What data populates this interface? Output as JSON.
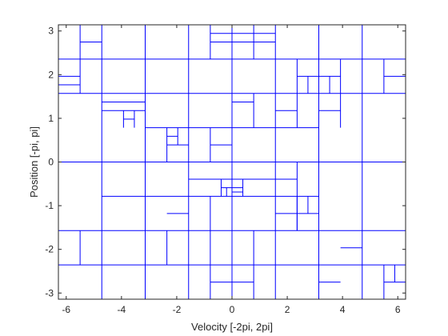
{
  "chart_data": {
    "type": "rectangle_partition",
    "title": "",
    "xlabel": "Velocity [-2pi, 2pi]",
    "ylabel": "Position [-pi, pi]",
    "xlim": [
      -6.2832,
      6.2832
    ],
    "ylim": [
      -3.1416,
      3.1416
    ],
    "xticks": [
      -6,
      -4,
      -2,
      0,
      2,
      4,
      6
    ],
    "yticks": [
      -3,
      -2,
      -1,
      0,
      1,
      2,
      3
    ],
    "xtick_labels": [
      "-6",
      "-4",
      "-2",
      "0",
      "2",
      "4",
      "6"
    ],
    "ytick_labels": [
      "-3",
      "-2",
      "-1",
      "0",
      "1",
      "2",
      "3"
    ],
    "line_color": "#0000ff",
    "axis_color": "#262626",
    "box": true,
    "grid": false,
    "vertical_segments": [
      {
        "x": -4.7124,
        "y1": -3.1416,
        "y2": 3.1416
      },
      {
        "x": -3.1416,
        "y1": -3.1416,
        "y2": 3.1416
      },
      {
        "x": -1.5708,
        "y1": -3.1416,
        "y2": 3.1416
      },
      {
        "x": 0.0,
        "y1": -3.1416,
        "y2": 3.1416
      },
      {
        "x": 1.5708,
        "y1": -3.1416,
        "y2": 3.1416
      },
      {
        "x": 3.1416,
        "y1": -3.1416,
        "y2": 3.1416
      },
      {
        "x": 4.7124,
        "y1": -3.1416,
        "y2": 3.1416
      },
      {
        "x": -5.4978,
        "y1": 2.3562,
        "y2": 3.1416
      },
      {
        "x": -5.4978,
        "y1": 1.5708,
        "y2": 2.3562
      },
      {
        "x": -5.4978,
        "y1": -2.3562,
        "y2": -1.5708
      },
      {
        "x": -0.7854,
        "y1": 2.3562,
        "y2": 3.1416
      },
      {
        "x": 0.7854,
        "y1": 2.3562,
        "y2": 3.1416
      },
      {
        "x": -0.7854,
        "y1": -3.1416,
        "y2": -2.3562
      },
      {
        "x": 0.7854,
        "y1": -3.1416,
        "y2": -2.3562
      },
      {
        "x": 2.3562,
        "y1": 1.5708,
        "y2": 2.3562
      },
      {
        "x": 3.927,
        "y1": 1.5708,
        "y2": 2.3562
      },
      {
        "x": 2.7489,
        "y1": 1.5708,
        "y2": 1.9635
      },
      {
        "x": 3.5343,
        "y1": 1.5708,
        "y2": 1.9635
      },
      {
        "x": 5.4978,
        "y1": 1.5708,
        "y2": 2.3562
      },
      {
        "x": -3.927,
        "y1": 0.7854,
        "y2": 1.1781
      },
      {
        "x": -3.5343,
        "y1": 0.7854,
        "y2": 1.1781
      },
      {
        "x": 0.7854,
        "y1": 0.7854,
        "y2": 1.5708
      },
      {
        "x": 2.3562,
        "y1": 0.7854,
        "y2": 1.5708
      },
      {
        "x": 3.927,
        "y1": 0.7854,
        "y2": 1.5708
      },
      {
        "x": -2.3562,
        "y1": 0.0,
        "y2": 0.7854
      },
      {
        "x": -1.9635,
        "y1": 0.3927,
        "y2": 0.7854
      },
      {
        "x": -0.7854,
        "y1": 0.0,
        "y2": 0.7854
      },
      {
        "x": 0.0,
        "y1": -0.7854,
        "y2": 0.0
      },
      {
        "x": -0.3927,
        "y1": -0.7854,
        "y2": -0.3927
      },
      {
        "x": -0.1963,
        "y1": -0.7854,
        "y2": -0.589
      },
      {
        "x": 0.3927,
        "y1": -0.7854,
        "y2": -0.3927
      },
      {
        "x": 2.3562,
        "y1": -1.5708,
        "y2": 0.0
      },
      {
        "x": -2.3562,
        "y1": -2.3562,
        "y2": -1.5708
      },
      {
        "x": -0.7854,
        "y1": -2.3562,
        "y2": -0.7854
      },
      {
        "x": 0.7854,
        "y1": -2.3562,
        "y2": -1.5708
      },
      {
        "x": 2.3562,
        "y1": -1.5708,
        "y2": -0.7854
      },
      {
        "x": 2.7489,
        "y1": -1.1781,
        "y2": -0.7854
      },
      {
        "x": 5.4978,
        "y1": -3.1416,
        "y2": -2.3562
      },
      {
        "x": 5.8905,
        "y1": -2.7489,
        "y2": -2.3562
      }
    ],
    "horizontal_segments": [
      {
        "y": 2.3562,
        "x1": -6.2832,
        "x2": 6.2832
      },
      {
        "y": 1.5708,
        "x1": -6.2832,
        "x2": 6.2832
      },
      {
        "y": 0.0,
        "x1": -6.2832,
        "x2": 6.2832
      },
      {
        "y": -1.5708,
        "x1": -6.2832,
        "x2": 6.2832
      },
      {
        "y": -2.3562,
        "x1": -6.2832,
        "x2": 6.2832
      },
      {
        "y": 0.7854,
        "x1": -3.1416,
        "x2": 3.1416
      },
      {
        "y": -0.7854,
        "x1": -4.7124,
        "x2": 3.1416
      },
      {
        "y": 2.7489,
        "x1": -5.4978,
        "x2": -4.7124
      },
      {
        "y": 1.9635,
        "x1": -6.2832,
        "x2": -5.4978
      },
      {
        "y": 1.7671,
        "x1": -6.2832,
        "x2": -5.4978
      },
      {
        "y": 2.7489,
        "x1": -0.7854,
        "x2": 1.5708
      },
      {
        "y": 2.9452,
        "x1": -0.7854,
        "x2": 1.5708
      },
      {
        "y": 1.9635,
        "x1": 2.3562,
        "x2": 3.927
      },
      {
        "y": 1.9635,
        "x1": 5.4978,
        "x2": 6.2832
      },
      {
        "y": 1.3744,
        "x1": -4.7124,
        "x2": -3.1416
      },
      {
        "y": 1.1781,
        "x1": -4.7124,
        "x2": -3.1416
      },
      {
        "y": 0.9817,
        "x1": -3.927,
        "x2": -3.5343
      },
      {
        "y": 1.3744,
        "x1": 0.0,
        "x2": 0.7854
      },
      {
        "y": 1.1781,
        "x1": 1.5708,
        "x2": 2.3562
      },
      {
        "y": 1.1781,
        "x1": 3.1416,
        "x2": 3.927
      },
      {
        "y": 0.589,
        "x1": -2.3562,
        "x2": -1.9635
      },
      {
        "y": 0.3927,
        "x1": -2.3562,
        "x2": -1.5708
      },
      {
        "y": 0.3927,
        "x1": -0.7854,
        "x2": 0.0
      },
      {
        "y": -0.3927,
        "x1": -1.5708,
        "x2": 2.3562
      },
      {
        "y": -0.589,
        "x1": -0.3927,
        "x2": 0.3927
      },
      {
        "y": -0.6872,
        "x1": 0.0,
        "x2": 0.3927
      },
      {
        "y": -1.1781,
        "x1": -2.3562,
        "x2": -1.5708
      },
      {
        "y": -1.1781,
        "x1": 1.5708,
        "x2": 3.1416
      },
      {
        "y": -1.9635,
        "x1": 3.927,
        "x2": 4.7124
      },
      {
        "y": -2.7489,
        "x1": -0.7854,
        "x2": 0.7854
      },
      {
        "y": -2.7489,
        "x1": 3.1416,
        "x2": 3.927
      },
      {
        "y": -2.7489,
        "x1": 5.4978,
        "x2": 6.2832
      }
    ]
  }
}
